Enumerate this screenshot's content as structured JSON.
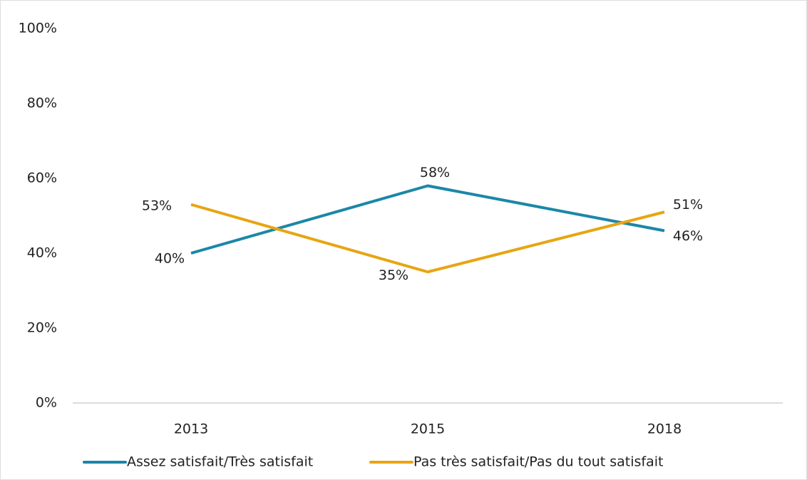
{
  "chart_data": {
    "type": "line",
    "categories": [
      "2013",
      "2015",
      "2018"
    ],
    "series": [
      {
        "name": "Assez satisfait/Très satisfait",
        "color": "#1b87a8",
        "values": [
          40,
          58,
          46
        ],
        "value_labels": [
          "40%",
          "58%",
          "46%"
        ]
      },
      {
        "name": "Pas très satisfait/Pas du tout satisfait",
        "color": "#e8a512",
        "values": [
          53,
          35,
          51
        ],
        "value_labels": [
          "53%",
          "35%",
          "51%"
        ]
      }
    ],
    "ylim": [
      0,
      100
    ],
    "yticks": [
      {
        "value": 0,
        "label": "0%"
      },
      {
        "value": 20,
        "label": "20%"
      },
      {
        "value": 40,
        "label": "40%"
      },
      {
        "value": 60,
        "label": "60%"
      },
      {
        "value": 80,
        "label": "80%"
      },
      {
        "value": 100,
        "label": "100%"
      }
    ],
    "grid": false,
    "legend": "bottom"
  }
}
